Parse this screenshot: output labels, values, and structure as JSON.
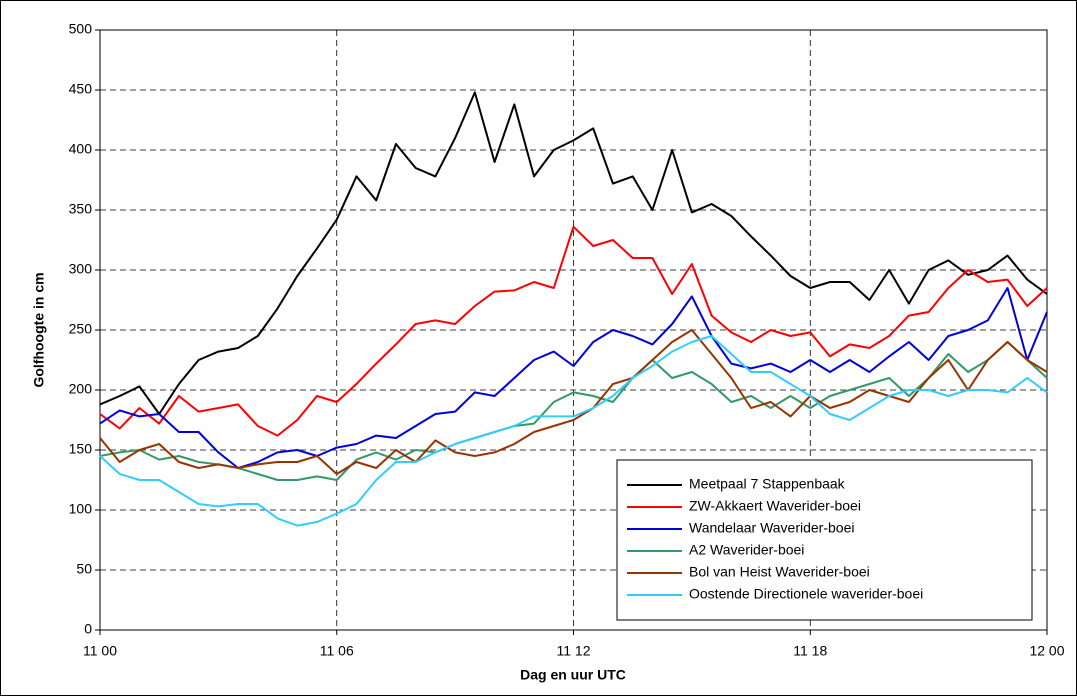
{
  "chart_data": {
    "type": "line",
    "y_label": "Golfhoogte in cm",
    "x_label": "Dag en uur UTC",
    "x": [
      0,
      0.5,
      1,
      1.5,
      2,
      2.5,
      3,
      3.5,
      4,
      4.5,
      5,
      5.5,
      6,
      6.5,
      7,
      7.5,
      8,
      8.5,
      9,
      9.5,
      10,
      10.5,
      11,
      11.5,
      12,
      12.5,
      13,
      13.5,
      14,
      14.5,
      15,
      15.5,
      16,
      16.5,
      17,
      17.5,
      18,
      18.5,
      19,
      19.5,
      20,
      20.5,
      21,
      21.5,
      22,
      22.5,
      23,
      23.5,
      24
    ],
    "xlim": [
      0,
      24
    ],
    "xticks": [
      {
        "value": 0,
        "label": "11 00"
      },
      {
        "value": 6,
        "label": "11 06"
      },
      {
        "value": 12,
        "label": "11 12"
      },
      {
        "value": 18,
        "label": "11 18"
      },
      {
        "value": 24,
        "label": "12 00"
      }
    ],
    "ylim": [
      0,
      500
    ],
    "yticks": [
      0,
      50,
      100,
      150,
      200,
      250,
      300,
      350,
      400,
      450,
      500
    ],
    "grid": true,
    "legend_position": "lower right",
    "series": [
      {
        "name": "Meetpaal 7 Stappenbaak",
        "color": "#000000",
        "values": [
          188,
          195,
          203,
          180,
          205,
          225,
          232,
          235,
          245,
          268,
          295,
          318,
          342,
          378,
          358,
          405,
          385,
          378,
          410,
          448,
          390,
          438,
          378,
          400,
          408,
          418,
          372,
          378,
          350,
          400,
          348,
          355,
          345,
          328,
          312,
          295,
          285,
          290,
          290,
          275,
          300,
          272,
          300,
          308,
          296,
          300,
          312,
          292,
          280
        ]
      },
      {
        "name": "ZW-Akkaert Waverider-boei",
        "color": "#ff0000",
        "values": [
          180,
          168,
          185,
          172,
          195,
          182,
          185,
          188,
          170,
          162,
          175,
          195,
          190,
          205,
          222,
          238,
          255,
          258,
          255,
          270,
          282,
          283,
          290,
          285,
          336,
          320,
          325,
          310,
          310,
          280,
          305,
          262,
          248,
          240,
          250,
          245,
          248,
          228,
          238,
          235,
          245,
          262,
          265,
          285,
          300,
          290,
          292,
          270,
          285
        ]
      },
      {
        "name": "Wandelaar Waverider-boei",
        "color": "#0000dd",
        "values": [
          172,
          183,
          178,
          180,
          165,
          165,
          148,
          135,
          140,
          148,
          150,
          145,
          152,
          155,
          162,
          160,
          170,
          180,
          182,
          198,
          195,
          210,
          225,
          232,
          220,
          240,
          250,
          245,
          238,
          255,
          278,
          245,
          222,
          218,
          222,
          215,
          225,
          215,
          225,
          215,
          228,
          240,
          225,
          245,
          250,
          258,
          285,
          225,
          265
        ]
      },
      {
        "name": "A2 Waverider-boei",
        "color": "#339966",
        "values": [
          145,
          148,
          150,
          142,
          145,
          140,
          138,
          135,
          130,
          125,
          125,
          128,
          125,
          142,
          148,
          142,
          150,
          148,
          155,
          160,
          165,
          170,
          172,
          190,
          198,
          195,
          190,
          210,
          225,
          210,
          215,
          205,
          190,
          195,
          185,
          195,
          185,
          195,
          200,
          205,
          210,
          195,
          210,
          230,
          215,
          225,
          240,
          225,
          210
        ]
      },
      {
        "name": "Bol van Heist Waverider-boei",
        "color": "#993300",
        "values": [
          160,
          140,
          150,
          155,
          140,
          135,
          138,
          135,
          138,
          140,
          140,
          145,
          130,
          140,
          135,
          150,
          140,
          158,
          148,
          145,
          148,
          155,
          165,
          170,
          175,
          185,
          205,
          210,
          225,
          240,
          250,
          230,
          210,
          185,
          190,
          178,
          195,
          185,
          190,
          200,
          195,
          190,
          210,
          225,
          200,
          225,
          240,
          225,
          215
        ]
      },
      {
        "name": "Oostende Directionele waverider-boei",
        "color": "#33ccff",
        "values": [
          145,
          130,
          125,
          125,
          115,
          105,
          103,
          105,
          105,
          93,
          87,
          90,
          97,
          105,
          125,
          140,
          140,
          148,
          155,
          160,
          165,
          170,
          178,
          178,
          178,
          185,
          195,
          210,
          220,
          232,
          240,
          245,
          230,
          215,
          215,
          205,
          195,
          180,
          175,
          185,
          195,
          200,
          200,
          195,
          200,
          200,
          198,
          210,
          198
        ]
      }
    ]
  }
}
